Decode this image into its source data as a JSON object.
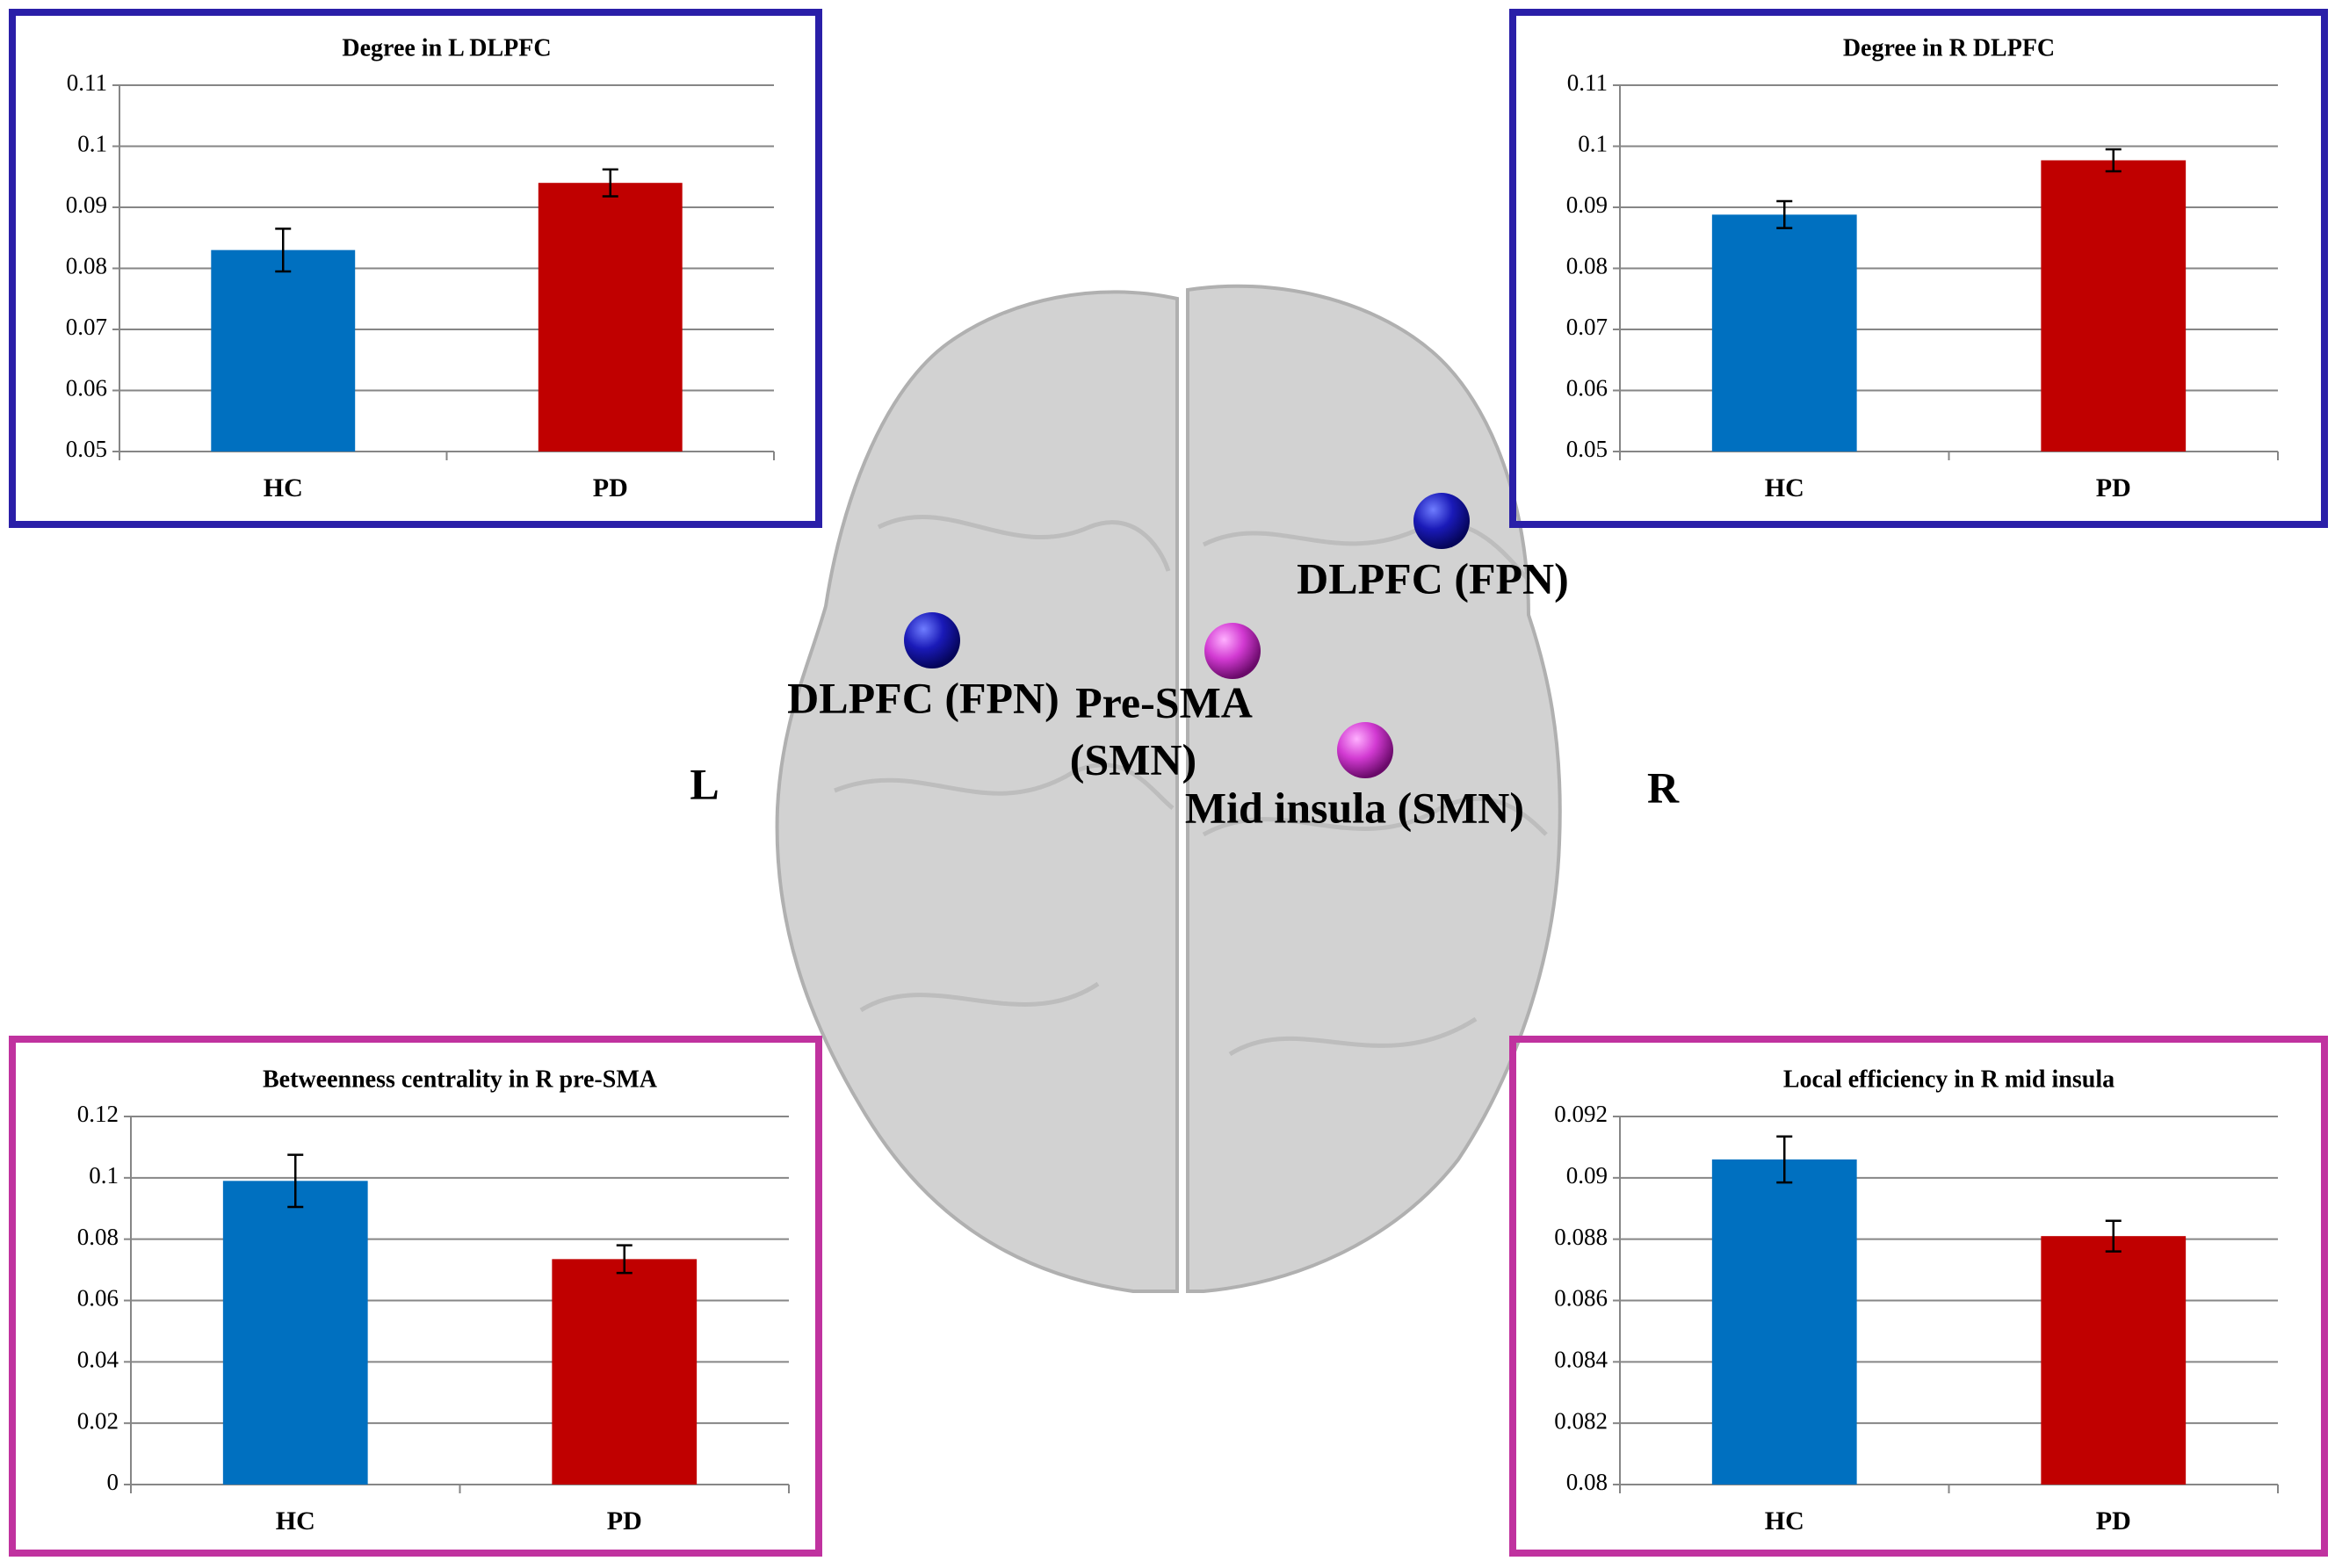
{
  "chart_data": [
    {
      "type": "bar",
      "title": "Degree in L DLPFC",
      "categories": [
        "HC",
        "PD"
      ],
      "values": [
        0.083,
        0.094
      ],
      "errors": [
        0.0035,
        0.0022
      ],
      "colors": [
        "#0070c0",
        "#c00000"
      ],
      "ylim": [
        0.05,
        0.11
      ],
      "yticks": [
        0.05,
        0.06,
        0.07,
        0.08,
        0.09,
        0.1,
        0.11
      ],
      "grid": true,
      "frame_color": "#2a1fa8"
    },
    {
      "type": "bar",
      "title": "Degree in R DLPFC",
      "categories": [
        "HC",
        "PD"
      ],
      "values": [
        0.0888,
        0.0977
      ],
      "errors": [
        0.0022,
        0.0018
      ],
      "colors": [
        "#0070c0",
        "#c00000"
      ],
      "ylim": [
        0.05,
        0.11
      ],
      "yticks": [
        0.05,
        0.06,
        0.07,
        0.08,
        0.09,
        0.1,
        0.11
      ],
      "grid": true,
      "frame_color": "#2a1fa8"
    },
    {
      "type": "bar",
      "title": "Betweenness centrality  in R pre-SMA",
      "categories": [
        "HC",
        "PD"
      ],
      "values": [
        0.099,
        0.0735
      ],
      "errors": [
        0.0085,
        0.0045
      ],
      "colors": [
        "#0070c0",
        "#c00000"
      ],
      "ylim": [
        0,
        0.12
      ],
      "yticks": [
        0,
        0.02,
        0.04,
        0.06,
        0.08,
        0.1,
        0.12
      ],
      "grid": true,
      "frame_color": "#c0329f"
    },
    {
      "type": "bar",
      "title": "Local efficiency in R mid insula",
      "categories": [
        "HC",
        "PD"
      ],
      "values": [
        0.0906,
        0.0881
      ],
      "errors": [
        0.00075,
        0.0005
      ],
      "colors": [
        "#0070c0",
        "#c00000"
      ],
      "ylim": [
        0.08,
        0.092
      ],
      "yticks": [
        0.08,
        0.082,
        0.084,
        0.086,
        0.088,
        0.09,
        0.092
      ],
      "grid": true,
      "frame_color": "#c0329f"
    }
  ],
  "brain": {
    "hemispheres": [
      "L",
      "R"
    ],
    "nodes": [
      {
        "label": [
          "DLPFC (FPN)"
        ]
      },
      {
        "label": [
          "DLPFC (FPN)"
        ]
      },
      {
        "label": [
          "Pre-SMA",
          "(SMN)"
        ]
      },
      {
        "label": [
          "Mid insula (SMN)"
        ]
      }
    ]
  }
}
